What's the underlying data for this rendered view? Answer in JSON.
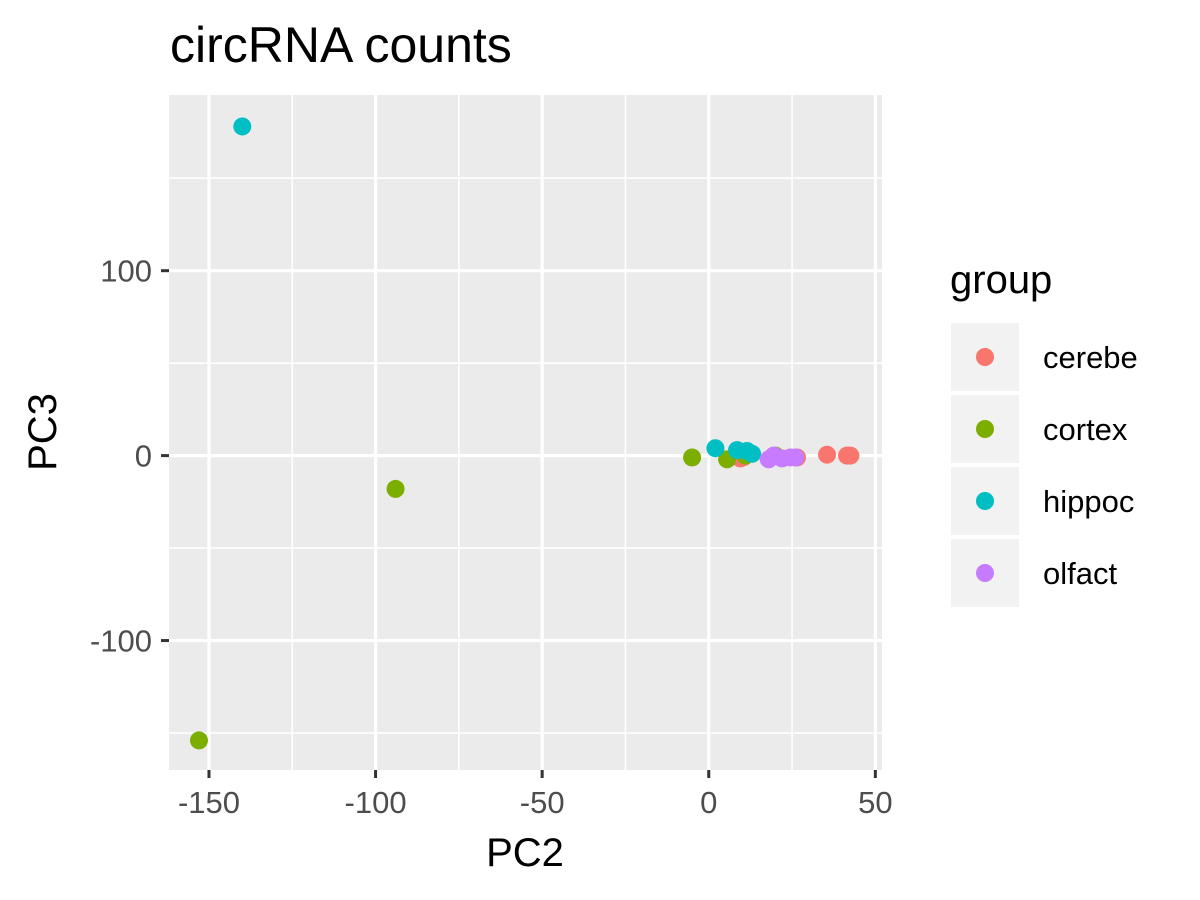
{
  "chart_data": {
    "type": "scatter",
    "title": "circRNA counts",
    "xlabel": "PC2",
    "ylabel": "PC3",
    "xlim": [
      -162,
      52
    ],
    "ylim": [
      -170,
      195
    ],
    "x_ticks": [
      -150,
      -100,
      -50,
      0,
      50
    ],
    "x_tick_labels": [
      "-150",
      "-100",
      "-50",
      "0",
      "50"
    ],
    "y_ticks": [
      -100,
      0,
      100
    ],
    "y_tick_labels": [
      "-100",
      "0",
      "100"
    ],
    "x_minor": [
      -125,
      -75,
      -25,
      25
    ],
    "y_minor": [
      -150,
      -50,
      50,
      150
    ],
    "grid": true,
    "legend": {
      "title": "group",
      "position": "right",
      "entries": [
        "cerebe",
        "cortex",
        "hippoc",
        "olfact"
      ]
    },
    "series": [
      {
        "name": "cerebe",
        "color": "#F8766D",
        "x": [
          9.5,
          10.5,
          26.5,
          35.5,
          41.5,
          42.5
        ],
        "y": [
          -1.5,
          -0.8,
          -1,
          0.5,
          0,
          0
        ]
      },
      {
        "name": "cortex",
        "color": "#7CAE00",
        "x": [
          -153,
          -94,
          -5,
          5.5,
          11,
          20
        ],
        "y": [
          -154,
          -18,
          -1,
          -2,
          0,
          0
        ]
      },
      {
        "name": "hippoc",
        "color": "#00BFC4",
        "x": [
          -140,
          2,
          8.5,
          11.5,
          13
        ],
        "y": [
          178,
          4,
          3,
          2.5,
          1
        ]
      },
      {
        "name": "olfact",
        "color": "#C77CFF",
        "x": [
          18,
          19.5,
          22,
          24.5,
          26
        ],
        "y": [
          -2,
          0,
          -1.5,
          -1,
          -1
        ]
      }
    ]
  }
}
